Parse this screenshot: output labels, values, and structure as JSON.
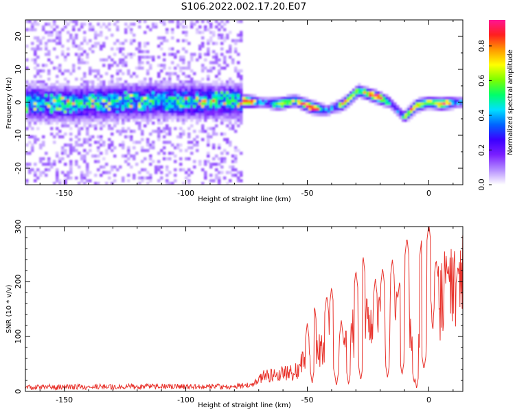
{
  "title": "S106.2022.002.17.20.E07",
  "colors": {
    "snr_line": "#e8332c",
    "axes": "#000000"
  },
  "chart_data": [
    {
      "type": "heatmap",
      "xlabel": "Height of straight line (km)",
      "ylabel": "Frequency (Hz)",
      "xlim": [
        -166,
        14
      ],
      "ylim": [
        -25,
        25
      ],
      "xticks": [
        -150,
        -100,
        -50,
        0
      ],
      "yticks": [
        -20,
        -10,
        0,
        10,
        20
      ],
      "colorbar": {
        "label": "Normalized spectral amplitude",
        "range": [
          0,
          0.95
        ],
        "ticks": [
          "0.0",
          "0.2",
          "0.4",
          "0.6",
          "0.8"
        ],
        "colormap": [
          "#ffffff",
          "#b48cff",
          "#7a1fff",
          "#3b00ff",
          "#0064ff",
          "#00e0ff",
          "#00ff6a",
          "#7cff00",
          "#ffff00",
          "#ff9a00",
          "#ff1f1f",
          "#ff1493"
        ]
      },
      "ridge": [
        {
          "x": -166,
          "f": 0.0
        },
        {
          "x": -150,
          "f": -0.5
        },
        {
          "x": -130,
          "f": 0.0
        },
        {
          "x": -110,
          "f": 0.5
        },
        {
          "x": -90,
          "f": 0.2
        },
        {
          "x": -75,
          "f": 0.3
        },
        {
          "x": -70,
          "f": 0.0
        },
        {
          "x": -62,
          "f": -0.5
        },
        {
          "x": -55,
          "f": 0.5
        },
        {
          "x": -48,
          "f": -1.5
        },
        {
          "x": -42,
          "f": -2.5
        },
        {
          "x": -35,
          "f": -0.5
        },
        {
          "x": -29,
          "f": 3.5
        },
        {
          "x": -22,
          "f": 1.8
        },
        {
          "x": -16,
          "f": 0.0
        },
        {
          "x": -10,
          "f": -4.5
        },
        {
          "x": -5,
          "f": -1.0
        },
        {
          "x": 0,
          "f": 0.0
        },
        {
          "x": 5,
          "f": -0.5
        },
        {
          "x": 11,
          "f": 0.0
        }
      ]
    },
    {
      "type": "line",
      "xlabel": "Height of straight line (km)",
      "ylabel": "SNR (10 * v/v)",
      "xlim": [
        -166,
        14
      ],
      "ylim": [
        0,
        300
      ],
      "xticks": [
        -150,
        -100,
        -50,
        0
      ],
      "yticks": [
        0,
        100,
        200,
        300
      ],
      "series": [
        {
          "envelope": [
            {
              "x": -166,
              "y": 8
            },
            {
              "x": -140,
              "y": 8
            },
            {
              "x": -110,
              "y": 9
            },
            {
              "x": -80,
              "y": 9
            },
            {
              "x": -72,
              "y": 12
            },
            {
              "x": -68,
              "y": 30
            },
            {
              "x": -62,
              "y": 30
            },
            {
              "x": -55,
              "y": 35
            },
            {
              "x": -50,
              "y": 60
            },
            {
              "x": -46,
              "y": 70
            },
            {
              "x": -42,
              "y": 80
            },
            {
              "x": -38,
              "y": 55
            },
            {
              "x": -34,
              "y": 90
            },
            {
              "x": -30,
              "y": 110
            },
            {
              "x": -26,
              "y": 120
            },
            {
              "x": -22,
              "y": 110
            },
            {
              "x": -18,
              "y": 140
            },
            {
              "x": -14,
              "y": 130
            },
            {
              "x": -10,
              "y": 120
            },
            {
              "x": -6,
              "y": 100
            },
            {
              "x": -2,
              "y": 110
            },
            {
              "x": 2,
              "y": 150
            },
            {
              "x": 6,
              "y": 175
            },
            {
              "x": 10,
              "y": 190
            },
            {
              "x": 14,
              "y": 205
            }
          ],
          "peaks": [
            {
              "x": -50,
              "y": 125
            },
            {
              "x": -47,
              "y": 155
            },
            {
              "x": -42,
              "y": 175
            },
            {
              "x": -40,
              "y": 190
            },
            {
              "x": -36,
              "y": 130
            },
            {
              "x": -30,
              "y": 220
            },
            {
              "x": -27,
              "y": 245
            },
            {
              "x": -22,
              "y": 205
            },
            {
              "x": -19,
              "y": 225
            },
            {
              "x": -15,
              "y": 240
            },
            {
              "x": -12,
              "y": 200
            },
            {
              "x": -9,
              "y": 280
            },
            {
              "x": -6,
              "y": 250
            },
            {
              "x": -3,
              "y": 275
            },
            {
              "x": 0,
              "y": 305
            },
            {
              "x": 3,
              "y": 240
            },
            {
              "x": 8,
              "y": 220
            },
            {
              "x": 12,
              "y": 228
            }
          ],
          "dips": [
            {
              "x": -48,
              "y": 15
            },
            {
              "x": -38,
              "y": 10
            },
            {
              "x": -33,
              "y": 12
            },
            {
              "x": -28,
              "y": 20
            },
            {
              "x": -17,
              "y": 25
            },
            {
              "x": -11,
              "y": 30
            },
            {
              "x": -6,
              "y": 15
            },
            {
              "x": -5,
              "y": 5
            },
            {
              "x": -2,
              "y": 40
            }
          ]
        }
      ]
    }
  ]
}
